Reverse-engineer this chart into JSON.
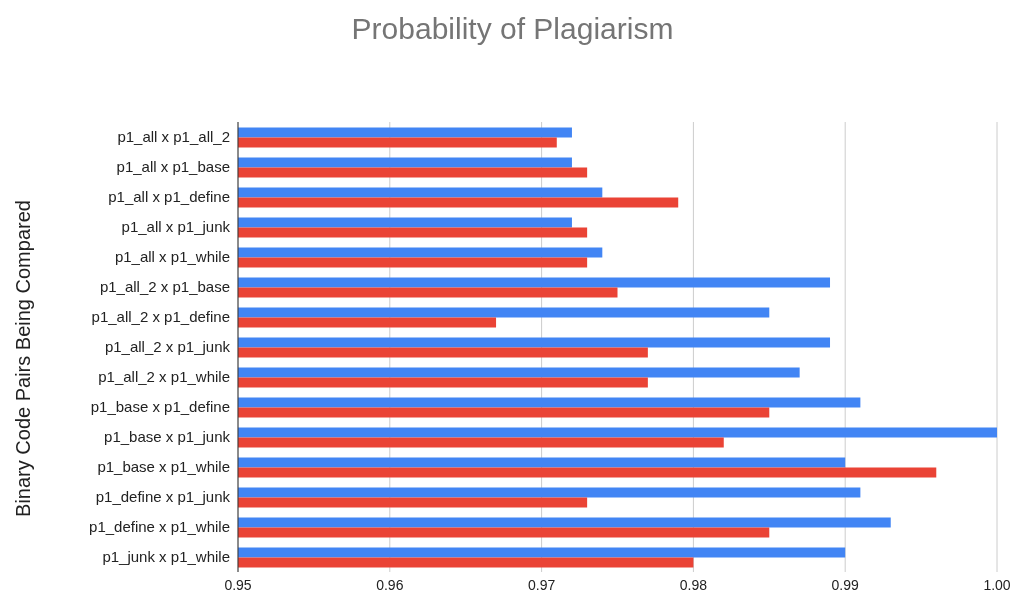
{
  "chart_data": {
    "type": "bar",
    "orientation": "horizontal",
    "title": "Probability of Plagiarism",
    "ylabel": "Binary Code Pairs Being Compared",
    "categories": [
      "p1_all x p1_all_2",
      "p1_all x p1_base",
      "p1_all x p1_define",
      "p1_all x p1_junk",
      "p1_all x p1_while",
      "p1_all_2 x p1_base",
      "p1_all_2 x p1_define",
      "p1_all_2 x p1_junk",
      "p1_all_2 x p1_while",
      "p1_base x p1_define",
      "p1_base x p1_junk",
      "p1_base x p1_while",
      "p1_define x p1_junk",
      "p1_define x p1_while",
      "p1_junk x p1_while"
    ],
    "series": [
      {
        "color": "#4285f4",
        "values": [
          0.972,
          0.972,
          0.974,
          0.972,
          0.974,
          0.989,
          0.985,
          0.989,
          0.987,
          0.991,
          1.0,
          0.99,
          0.991,
          0.993,
          0.99
        ]
      },
      {
        "color": "#ea4335",
        "values": [
          0.971,
          0.973,
          0.979,
          0.973,
          0.973,
          0.975,
          0.967,
          0.977,
          0.977,
          0.985,
          0.982,
          0.996,
          0.973,
          0.985,
          0.98
        ]
      }
    ],
    "xlim": [
      0.95,
      1.0
    ],
    "xticks": [
      {
        "value": 0.95,
        "label": "0.95"
      },
      {
        "value": 0.96,
        "label": "0.96"
      },
      {
        "value": 0.97,
        "label": "0.97"
      },
      {
        "value": 0.98,
        "label": "0.98"
      },
      {
        "value": 0.99,
        "label": "0.99"
      },
      {
        "value": 1.0,
        "label": "1.00"
      }
    ],
    "grid": "x",
    "legend": false
  }
}
